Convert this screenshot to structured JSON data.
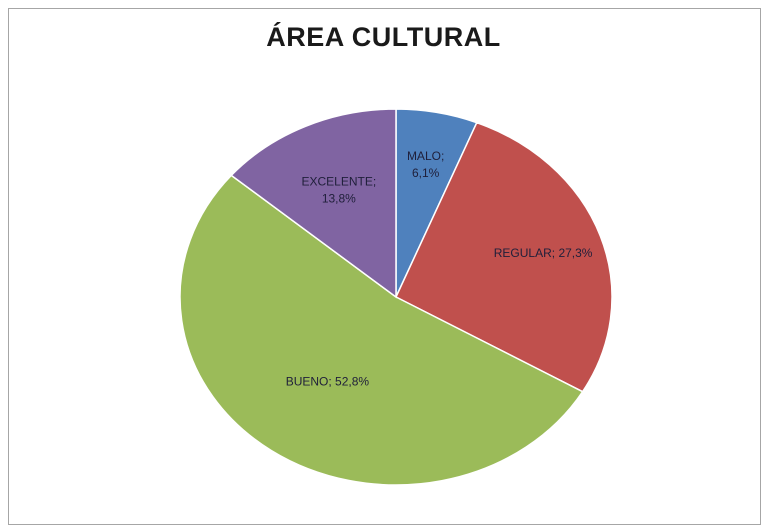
{
  "chart_data": {
    "type": "pie",
    "title": "ÁREA CULTURAL",
    "start_angle_deg": 0,
    "direction": "clockwise",
    "slices": [
      {
        "name": "MALO",
        "value": 6.1,
        "label_lines": [
          "MALO;",
          "6,1%"
        ],
        "color": "#4f81bd"
      },
      {
        "name": "REGULAR",
        "value": 27.3,
        "label_lines": [
          "REGULAR; 27,3%"
        ],
        "color": "#c0504d"
      },
      {
        "name": "BUENO",
        "value": 52.8,
        "label_lines": [
          "BUENO; 52,8%"
        ],
        "color": "#9bbb59"
      },
      {
        "name": "EXCELENTE",
        "value": 13.8,
        "label_lines": [
          "EXCELENTE;",
          "13,8%"
        ],
        "color": "#8064a2"
      }
    ],
    "legend": "none"
  }
}
